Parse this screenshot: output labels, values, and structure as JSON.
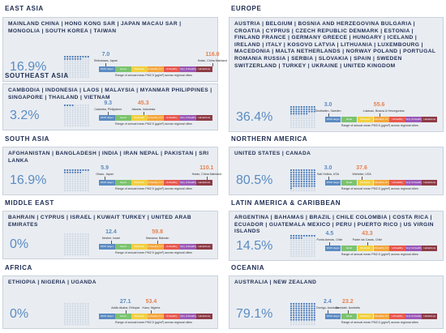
{
  "regions": [
    {
      "name": "EAST ASIA",
      "countries": "MAINLAND CHINA | HONG KONG SAR | JAPAN MACAU SAR | MONGOLIA | SOUTH KOREA | TAIWAN",
      "share": {
        "value": 16.9,
        "label": "16.9%"
      },
      "min": {
        "value": 7,
        "label": "7.0",
        "city": "Shibukawa, Japan"
      },
      "max": {
        "value": 116,
        "label": "116.0",
        "city": "Hotan, China Mainland"
      }
    },
    {
      "name": "SOUTHEAST ASIA",
      "countries": "CAMBODIA | INDONESIA | LAOS | MALAYSIA | MYANMAR PHILIPPINES | SINGAPORE | THAILAND | VIETNAM",
      "share": {
        "value": 3.2,
        "label": "3.2%"
      },
      "min": {
        "value": 9.3,
        "label": "9.3",
        "city": "Calamba, Philippines"
      },
      "max": {
        "value": 45.3,
        "label": "45.3",
        "city": "Jakarta, Indonesia"
      }
    },
    {
      "name": "SOUTH ASIA",
      "countries": "AFGHANISTAN | BANGLADESH | INDIA | IRAN NEPAL | PAKISTAN | SRI LANKA",
      "share": {
        "value": 16.9,
        "label": "16.9%"
      },
      "min": {
        "value": 5.9,
        "label": "5.9",
        "city": "Oharu, Japan"
      },
      "max": {
        "value": 110.1,
        "label": "110.1",
        "city": "Hotan, China Mainland"
      }
    },
    {
      "name": "MIDDLE EAST",
      "countries": "BAHRAIN | CYPRUS | ISRAEL | KUWAIT TURKEY | UNITED ARAB EMIRATES",
      "share": {
        "value": 0,
        "label": "0%"
      },
      "min": {
        "value": 12.4,
        "label": "12.4",
        "city": "Nesher, Israel"
      },
      "max": {
        "value": 59.8,
        "label": "59.8",
        "city": "Manama, Bahrain"
      }
    },
    {
      "name": "AFRICA",
      "countries": "ETHIOPIA | NIGERIA | UGANDA",
      "share": {
        "value": 0,
        "label": "0%"
      },
      "min": {
        "value": 27.1,
        "label": "27.1",
        "city": "Addis Ababa, Ethiopia"
      },
      "max": {
        "value": 53.4,
        "label": "53.4",
        "city": "Kano, Nigeria"
      }
    },
    {
      "name": "EUROPE",
      "countries": "AUSTRIA | BELGIUM | BOSNIA AND HERZEGOVINA BULGARIA | CROATIA | CYPRUS | CZECH REPUBLIC DENMARK | ESTONIA | FINLAND FRANCE | GERMANY GREECE | HUNGARY | ICELAND | IRELAND | ITALY | KOSOVO LATVIA | LITHUANIA | LUXEMBOURG | MACEDONIA | MALTA NETHERLANDS | NORWAY POLAND | PORTUGAL ROMANIA RUSSIA | SERBIA | SLOVAKIA | SPAIN | SWEDEN SWITZERLAND | TURKEY | UKRAINE | UNITED KINGDOM",
      "share": {
        "value": 36.4,
        "label": "36.4%"
      },
      "min": {
        "value": 3,
        "label": "3.0",
        "city": "Sindhallen, Sweden"
      },
      "max": {
        "value": 55.6,
        "label": "55.6",
        "city": "Lukavac, Bosnia & Herzegovina"
      }
    },
    {
      "name": "NORTHERN AMERICA",
      "countries": "UNITED STATES | CANADA",
      "share": {
        "value": 80.5,
        "label": "80.5%"
      },
      "min": {
        "value": 3,
        "label": "3.0",
        "city": "Salt Hollow, USA"
      },
      "max": {
        "value": 37.6,
        "label": "37.6",
        "city": "Wahtoke, USA"
      }
    },
    {
      "name": "LATIN AMERICA & CARIBBEAN",
      "countries": "ARGENTINA | BAHAMAS | BRAZIL | CHILE COLOMBIA | COSTA RICA | ECUADOR | GUATEMALA MEXICO | PERU | PUERTO RICO | US VIRGIN ISLANDS",
      "share": {
        "value": 14.5,
        "label": "14.5%"
      },
      "min": {
        "value": 4.5,
        "label": "4.5",
        "city": "Punta Arenas, Chile"
      },
      "max": {
        "value": 43.3,
        "label": "43.3",
        "city": "Padre las Casas, Chile"
      }
    },
    {
      "name": "OCEANIA",
      "countries": "AUSTRALIA | NEW ZEALAND",
      "share": {
        "value": 79.1,
        "label": "79.1%"
      },
      "min": {
        "value": 2.4,
        "label": "2.4",
        "city": "Dorrigo, Australia"
      },
      "max": {
        "value": 23.2,
        "label": "23.2",
        "city": "Armidale, Australia"
      }
    }
  ],
  "scale": {
    "labels": [
      "WHO target",
      "Good",
      "Moderate",
      "Unhealthy for Sensitive Groups",
      "Unhealthy",
      "Very Unhealthy",
      "Hazardous"
    ],
    "colors": [
      "#5b8bc2",
      "#7cc36f",
      "#f1cf3f",
      "#f3a53c",
      "#e8574f",
      "#9b59b6",
      "#8e3b46"
    ],
    "caption": "Range of annual mean PM2.5 (µg/m³) across regional cities"
  }
}
